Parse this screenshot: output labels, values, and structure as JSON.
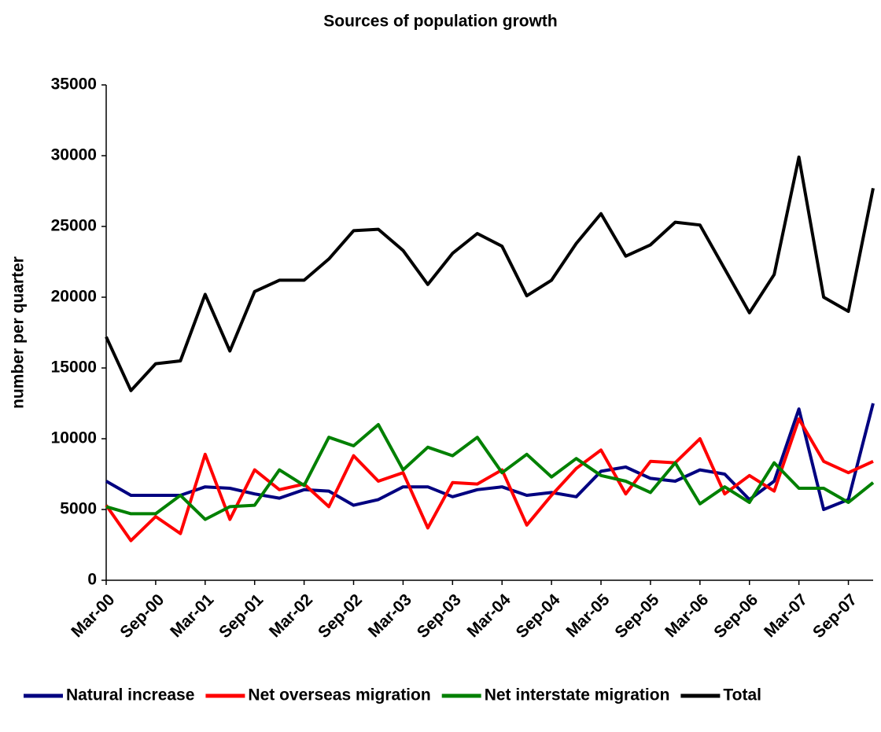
{
  "chart_data": {
    "type": "line",
    "title": "Sources of population growth",
    "y_label": "number per quarter",
    "categories": [
      "Mar-00",
      null,
      "Sep-00",
      null,
      "Mar-01",
      null,
      "Sep-01",
      null,
      "Mar-02",
      null,
      "Sep-02",
      null,
      "Mar-03",
      null,
      "Sep-03",
      null,
      "Mar-04",
      null,
      "Sep-04",
      null,
      "Mar-05",
      null,
      "Sep-05",
      null,
      "Mar-06",
      null,
      "Sep-06",
      null,
      "Mar-07",
      null,
      "Sep-07",
      null
    ],
    "series": [
      {
        "name": "Natural increase",
        "color": "#000080",
        "values": [
          7000,
          6000,
          6000,
          6000,
          6600,
          6500,
          6100,
          5800,
          6400,
          6300,
          5300,
          5700,
          6600,
          6600,
          5900,
          6400,
          6600,
          6000,
          6200,
          5900,
          7700,
          8000,
          7200,
          7000,
          7800,
          7500,
          5700,
          7000,
          12100,
          5000,
          5700,
          12500
        ]
      },
      {
        "name": "Net overseas migration",
        "color": "#ff0000",
        "values": [
          5300,
          2800,
          4500,
          3300,
          8900,
          4300,
          7800,
          6400,
          6800,
          5200,
          8800,
          7000,
          7600,
          3700,
          6900,
          6800,
          7800,
          3900,
          6000,
          7900,
          9200,
          6100,
          8400,
          8300,
          10000,
          6100,
          7400,
          6300,
          11400,
          8400,
          7600,
          8400
        ]
      },
      {
        "name": "Net interstate migration",
        "color": "#008000",
        "values": [
          5200,
          4700,
          4700,
          6000,
          4300,
          5200,
          5300,
          7800,
          6700,
          10100,
          9500,
          11000,
          7800,
          9400,
          8800,
          10100,
          7600,
          8900,
          7300,
          8600,
          7400,
          7000,
          6200,
          8300,
          5400,
          6600,
          5500,
          8300,
          6500,
          6500,
          5500,
          6900
        ]
      },
      {
        "name": "Total",
        "color": "#000000",
        "values": [
          17200,
          13400,
          15300,
          15500,
          20200,
          16200,
          20400,
          21200,
          21200,
          22700,
          24700,
          24800,
          23300,
          20900,
          23100,
          24500,
          23600,
          20100,
          21200,
          23800,
          25900,
          22900,
          23700,
          25300,
          25100,
          22000,
          18900,
          21600,
          29900,
          20000,
          19000,
          27700
        ]
      }
    ],
    "ylim": [
      0,
      35000
    ],
    "yticks": [
      0,
      5000,
      10000,
      15000,
      20000,
      25000,
      30000,
      35000
    ]
  }
}
